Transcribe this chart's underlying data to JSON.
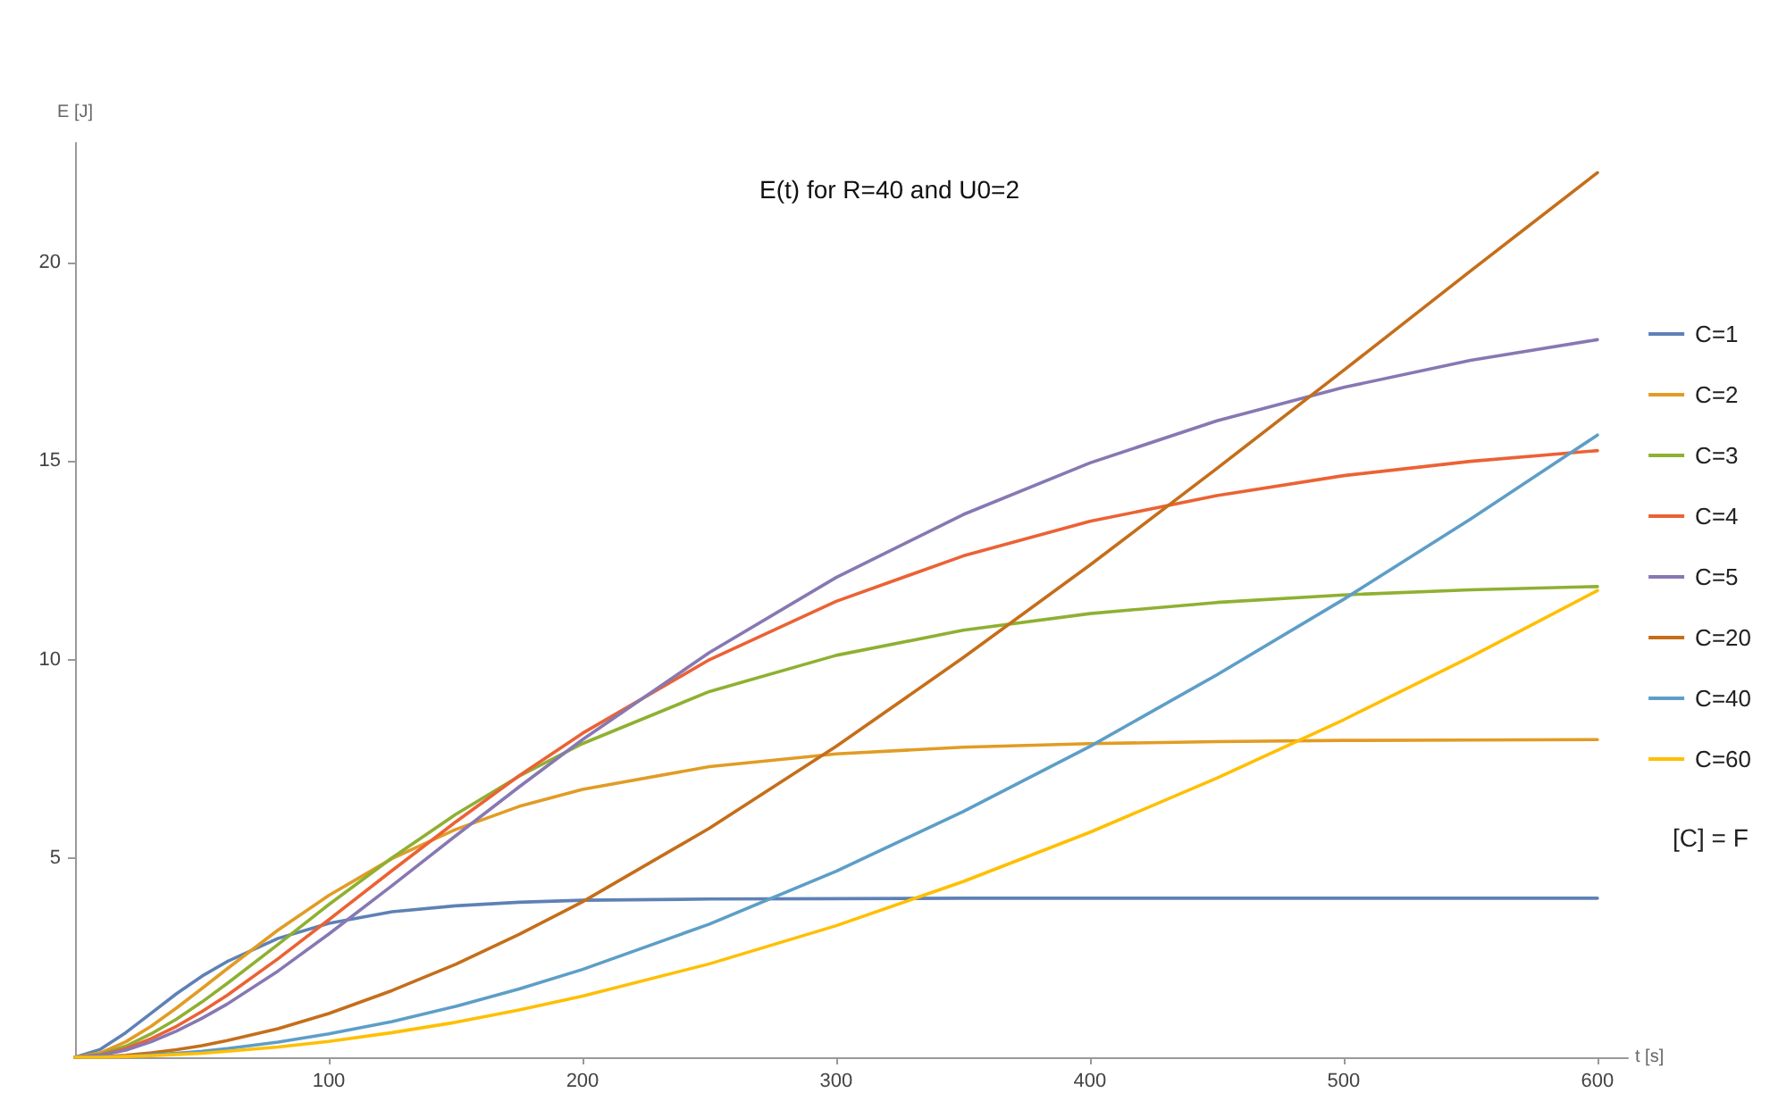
{
  "chart_data": {
    "type": "line",
    "title": "E(t) for R=40 and U0=2",
    "xlabel": "t [s]",
    "ylabel": "E [J]",
    "x": [
      0,
      10,
      20,
      30,
      40,
      50,
      60,
      80,
      100,
      125,
      150,
      175,
      200,
      250,
      300,
      350,
      400,
      450,
      500,
      550,
      600
    ],
    "series": [
      {
        "name": "C=1",
        "color": "#5e81b5",
        "values": [
          0,
          0.2,
          0.62,
          1.11,
          1.6,
          2.04,
          2.41,
          2.99,
          3.37,
          3.66,
          3.81,
          3.9,
          3.95,
          3.98,
          3.99,
          4,
          4,
          4,
          4,
          4,
          4
        ]
      },
      {
        "name": "C=2",
        "color": "#e19c24",
        "values": [
          0,
          0.11,
          0.39,
          0.78,
          1.24,
          1.73,
          2.23,
          3.2,
          4.07,
          5,
          5.73,
          6.31,
          6.74,
          7.31,
          7.63,
          7.8,
          7.89,
          7.94,
          7.97,
          7.98,
          7.99
        ]
      },
      {
        "name": "C=3",
        "color": "#8fb032",
        "values": [
          0,
          0.08,
          0.28,
          0.59,
          0.96,
          1.39,
          1.86,
          2.84,
          3.84,
          5.02,
          6.11,
          7.07,
          7.89,
          9.2,
          10.11,
          10.74,
          11.16,
          11.44,
          11.63,
          11.76,
          11.84
        ]
      },
      {
        "name": "C=4",
        "color": "#eb6235",
        "values": [
          0,
          0.06,
          0.22,
          0.47,
          0.78,
          1.15,
          1.56,
          2.48,
          3.46,
          4.7,
          5.92,
          7.08,
          8.15,
          10,
          11.47,
          12.61,
          13.48,
          14.13,
          14.63,
          14.99,
          15.26
        ]
      },
      {
        "name": "C=5",
        "color": "#8778b3",
        "values": [
          0,
          0.05,
          0.18,
          0.39,
          0.66,
          0.98,
          1.34,
          2.17,
          3.1,
          4.32,
          5.57,
          6.8,
          7.99,
          10.18,
          12.07,
          13.65,
          14.95,
          16.01,
          16.85,
          17.53,
          18.05
        ]
      },
      {
        "name": "C=20",
        "color": "#c56e1a",
        "values": [
          0,
          0.01,
          0.05,
          0.11,
          0.19,
          0.29,
          0.42,
          0.72,
          1.1,
          1.68,
          2.34,
          3.09,
          3.91,
          5.76,
          7.82,
          10.05,
          12.38,
          14.81,
          17.28,
          19.78,
          22.25
        ]
      },
      {
        "name": "C=40",
        "color": "#5d9ec7",
        "values": [
          0,
          0.01,
          0.02,
          0.06,
          0.1,
          0.15,
          0.22,
          0.38,
          0.59,
          0.9,
          1.28,
          1.72,
          2.21,
          3.35,
          4.68,
          6.18,
          7.82,
          9.62,
          11.52,
          13.54,
          15.65
        ]
      },
      {
        "name": "C=60",
        "color": "#ffbf00",
        "values": [
          0,
          0,
          0.02,
          0.04,
          0.07,
          0.1,
          0.15,
          0.26,
          0.4,
          0.62,
          0.88,
          1.19,
          1.54,
          2.35,
          3.31,
          4.42,
          5.66,
          7.02,
          8.49,
          10.07,
          11.74
        ]
      }
    ],
    "xlim": [
      0,
      612
    ],
    "ylim": [
      0,
      23
    ],
    "xticks": [
      100,
      200,
      300,
      400,
      500,
      600
    ],
    "yticks": [
      5,
      10,
      15,
      20
    ],
    "grid": false,
    "legend": "right",
    "marker": "none",
    "line_style": "solid",
    "annotations": [
      "[C] = F"
    ]
  }
}
